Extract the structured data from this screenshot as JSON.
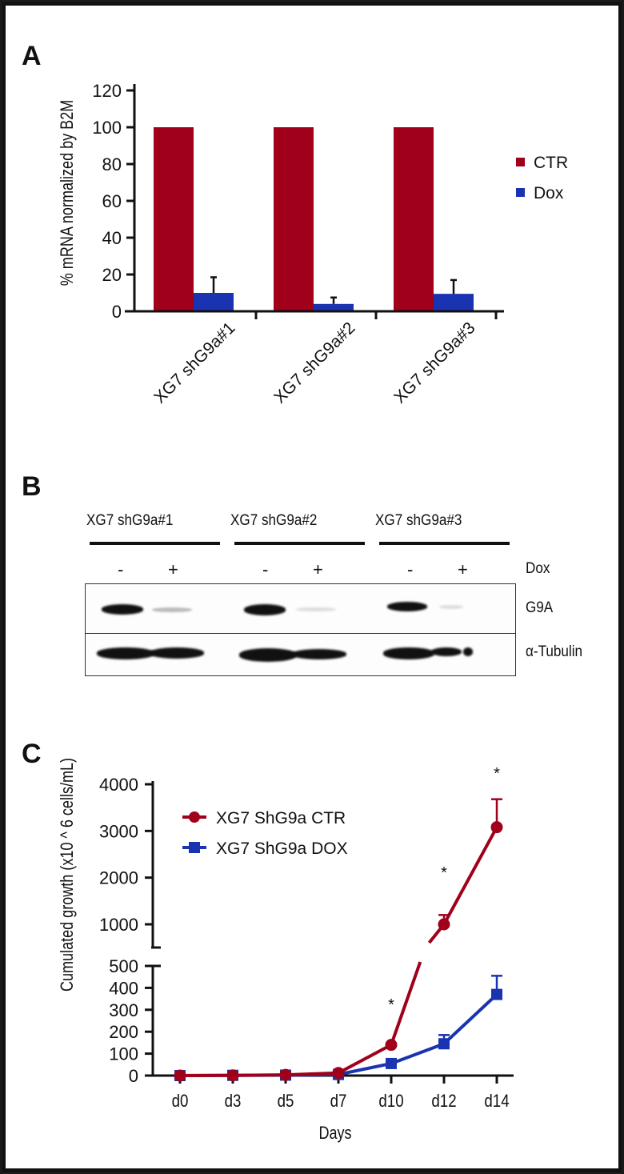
{
  "panels": {
    "A": {
      "letter": "A"
    },
    "B": {
      "letter": "B"
    },
    "C": {
      "letter": "C"
    }
  },
  "chart_data": [
    {
      "panel": "A",
      "type": "bar",
      "title": "",
      "xlabel": "",
      "ylabel": "% mRNA normalized by B2M",
      "ylim": [
        0,
        120
      ],
      "yticks": [
        "0",
        "20",
        "40",
        "60",
        "80",
        "100",
        "120"
      ],
      "categories": [
        "XG7 shG9a#1",
        "XG7 shG9a#2",
        "XG7 shG9a#3"
      ],
      "series": [
        {
          "name": "CTR",
          "color": "#a0001a",
          "values": [
            100,
            100,
            100
          ],
          "errors": [
            0,
            0,
            0
          ]
        },
        {
          "name": "Dox",
          "color": "#1a33b0",
          "values": [
            10,
            4,
            9.5
          ],
          "errors": [
            8.5,
            3.5,
            7.5
          ]
        }
      ],
      "legend": {
        "position": "right",
        "items": [
          "CTR",
          "Dox"
        ]
      }
    },
    {
      "panel": "C",
      "type": "line",
      "title": "",
      "xlabel": "Days",
      "ylabel": "Cumulated growth (x10 ^ 6 cells/mL)",
      "x": [
        "d0",
        "d3",
        "d5",
        "d7",
        "d10",
        "d12",
        "d14"
      ],
      "yaxis_break": {
        "lower": [
          0,
          500
        ],
        "upper": [
          500,
          4000
        ]
      },
      "yticks_lower": [
        "0",
        "100",
        "200",
        "300",
        "400",
        "500"
      ],
      "yticks_upper": [
        "1000",
        "2000",
        "3000",
        "4000"
      ],
      "series": [
        {
          "name": "XG7 ShG9a CTR",
          "color": "#a0001a",
          "marker": "circle",
          "values": [
            0,
            1,
            3,
            12,
            140,
            1000,
            3080
          ],
          "errors": [
            0,
            0,
            0,
            0,
            0,
            200,
            600
          ]
        },
        {
          "name": "XG7 ShG9a DOX",
          "color": "#1a33b0",
          "marker": "square",
          "values": [
            0,
            1,
            2,
            5,
            55,
            145,
            370
          ],
          "errors": [
            0,
            0,
            0,
            0,
            0,
            40,
            85
          ]
        }
      ],
      "annotations": [
        {
          "x": "d10",
          "text": "*"
        },
        {
          "x": "d12",
          "text": "*"
        },
        {
          "x": "d14",
          "text": "*"
        }
      ],
      "legend": {
        "position": "upper-left inside",
        "items": [
          "XG7 ShG9a CTR",
          "XG7 ShG9a DOX"
        ]
      }
    }
  ],
  "blot": {
    "groups": [
      "XG7 shG9a#1",
      "XG7 shG9a#2",
      "XG7 shG9a#3"
    ],
    "treatment_label": "Dox",
    "lanes": [
      "-",
      "+",
      "-",
      "+",
      "-",
      "+"
    ],
    "rows": [
      "G9A",
      "α-Tubulin"
    ]
  }
}
